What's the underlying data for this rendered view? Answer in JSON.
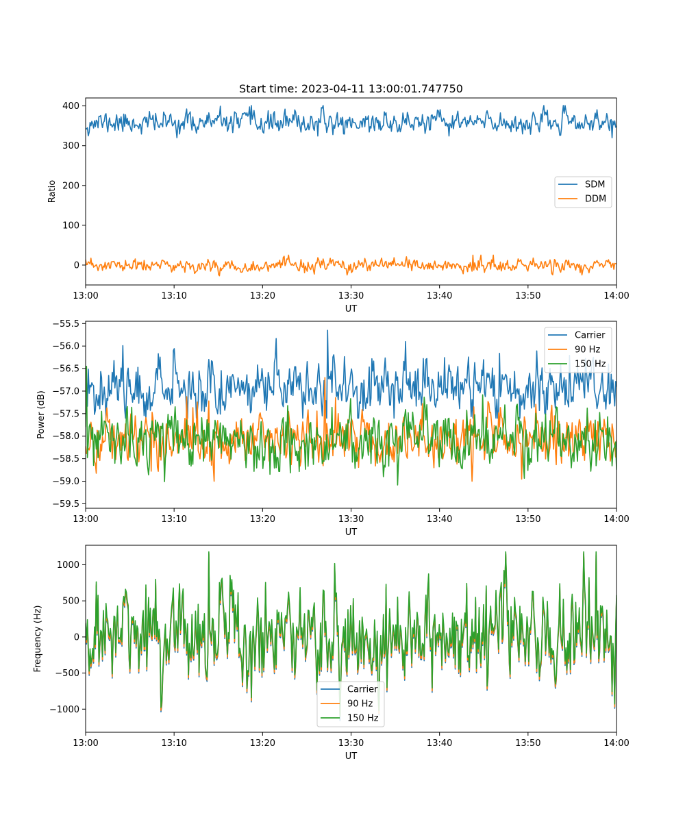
{
  "figure": {
    "title": "Start time: 2023-04-11 13:00:01.747750"
  },
  "chart_data": [
    {
      "type": "line",
      "title": "Start time: 2023-04-11 13:00:01.747750",
      "xlabel": "UT",
      "ylabel": "Ratio",
      "x_ticks": [
        "13:00",
        "13:10",
        "13:20",
        "13:30",
        "13:40",
        "13:50",
        "14:00"
      ],
      "xlim_minutes": [
        0,
        60
      ],
      "ylim": [
        -50,
        420
      ],
      "y_ticks": [
        0,
        100,
        200,
        300,
        400
      ],
      "y_tick_labels": [
        "0",
        "100",
        "200",
        "300",
        "400"
      ],
      "legend_position": "center-right",
      "series": [
        {
          "name": "SDM",
          "color": "#1f77b4",
          "points": 600,
          "mean": 358,
          "amplitude": 13,
          "min": 320,
          "max": 401,
          "seed": 11,
          "peak_minute": 18.7
        },
        {
          "name": "DDM",
          "color": "#ff7f0e",
          "points": 600,
          "mean": -2,
          "amplitude": 8,
          "min": -27,
          "max": 25,
          "seed": 23,
          "peak_minute": 43.8
        }
      ]
    },
    {
      "type": "line",
      "title": "",
      "xlabel": "UT",
      "ylabel": "Power (dB)",
      "x_ticks": [
        "13:00",
        "13:10",
        "13:20",
        "13:30",
        "13:40",
        "13:50",
        "14:00"
      ],
      "xlim_minutes": [
        0,
        60
      ],
      "ylim": [
        -59.6,
        -55.45
      ],
      "y_ticks": [
        -55.5,
        -56.0,
        -56.5,
        -57.0,
        -57.5,
        -58.0,
        -58.5,
        -59.0,
        -59.5
      ],
      "y_tick_labels": [
        "−55.5",
        "−56.0",
        "−56.5",
        "−57.0",
        "−57.5",
        "−58.0",
        "−58.5",
        "−59.0",
        "−59.5"
      ],
      "legend_position": "top-right",
      "series": [
        {
          "name": "Carrier",
          "color": "#1f77b4",
          "points": 600,
          "mean": -56.9,
          "amplitude": 0.3,
          "min": -57.6,
          "max": -55.65,
          "seed": 37,
          "peak_minute": 27.3
        },
        {
          "name": "90 Hz",
          "color": "#ff7f0e",
          "points": 600,
          "mean": -58.05,
          "amplitude": 0.3,
          "min": -59.0,
          "max": -56.7,
          "seed": 41,
          "peak_minute": 27.0
        },
        {
          "name": "150 Hz",
          "color": "#2ca02c",
          "points": 600,
          "mean": -58.1,
          "amplitude": 0.3,
          "min": -59.45,
          "max": -56.45,
          "seed": 53,
          "peak_minute": 0.1
        }
      ]
    },
    {
      "type": "line",
      "title": "",
      "xlabel": "UT",
      "ylabel": "Frequency (Hz)",
      "x_ticks": [
        "13:00",
        "13:10",
        "13:20",
        "13:30",
        "13:40",
        "13:50",
        "14:00"
      ],
      "xlim_minutes": [
        0,
        60
      ],
      "ylim": [
        -1320,
        1270
      ],
      "y_ticks": [
        1000,
        500,
        0,
        -500,
        -1000
      ],
      "y_tick_labels": [
        "1000",
        "500",
        "0",
        "−500",
        "−1000"
      ],
      "legend_position": "bottom-center",
      "series": [
        {
          "name": "Carrier",
          "color": "#1f77b4",
          "points": 600,
          "mean": 0,
          "amplitude": 330,
          "min": -1200,
          "max": 1150,
          "seed": 71,
          "peak_minute": 13.9
        },
        {
          "name": "90 Hz",
          "color": "#ff7f0e",
          "points": 600,
          "mean": 20,
          "amplitude": 330,
          "min": -1100,
          "max": 1160,
          "seed": 71,
          "peak_minute": 13.9
        },
        {
          "name": "150 Hz",
          "color": "#2ca02c",
          "points": 600,
          "mean": 60,
          "amplitude": 330,
          "min": -1100,
          "max": 1180,
          "seed": 71,
          "peak_minute": 13.9
        }
      ]
    }
  ]
}
